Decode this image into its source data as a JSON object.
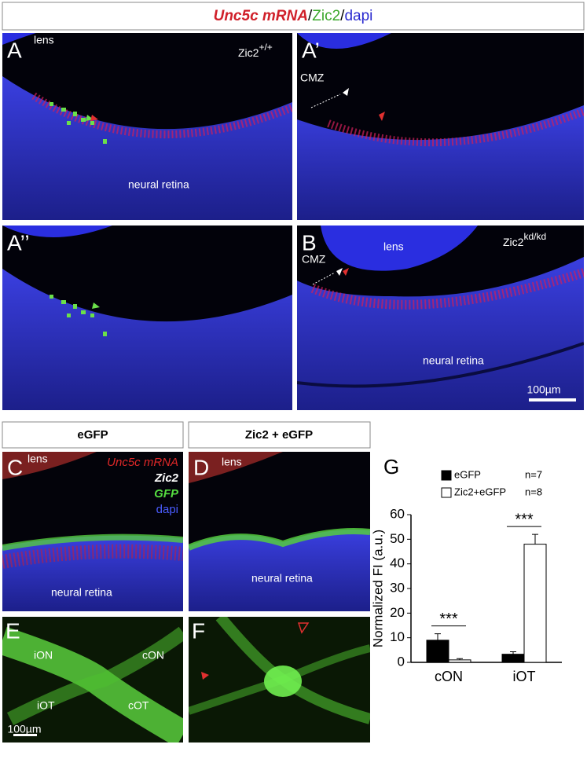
{
  "header": {
    "title_parts": [
      "Unc5c mRNA",
      "/",
      "Zic2",
      "/",
      "dapi"
    ]
  },
  "panel_A": {
    "letter": "A",
    "lens": "lens",
    "genotype": "Zic2",
    "superscript": "+/+",
    "region": "neural retina"
  },
  "panel_A1": {
    "letter": "A’",
    "cmz": "CMZ"
  },
  "panel_A2": {
    "letter": "A’’"
  },
  "panel_B": {
    "letter": "B",
    "lens": "lens",
    "genotype": "Zic2",
    "superscript": "kd/kd",
    "cmz": "CMZ",
    "region": "neural retina",
    "scale": "100µm"
  },
  "column_headers": [
    "eGFP",
    "Zic2 + eGFP"
  ],
  "panel_C": {
    "letter": "C",
    "lens": "lens",
    "legend": [
      "Unc5c mRNA",
      "Zic2",
      "GFP",
      "dapi"
    ],
    "region": "neural retina"
  },
  "panel_D": {
    "letter": "D",
    "lens": "lens",
    "region": "neural retina"
  },
  "panel_E": {
    "letter": "E",
    "labels": [
      "iON",
      "cON",
      "iOT",
      "cOT"
    ],
    "scale": "100µm"
  },
  "panel_F": {
    "letter": "F"
  },
  "chart_data": {
    "type": "bar",
    "panel_letter": "G",
    "y_label": "Normalized FI (a.u.)",
    "categories": [
      "cON",
      "iOT"
    ],
    "series": [
      {
        "name": "eGFP",
        "n": "n=7",
        "color": "#000000",
        "values": [
          9,
          3.3
        ],
        "errors": [
          2.6,
          1
        ]
      },
      {
        "name": "Zic2+eGFP",
        "n": "n=8",
        "color": "#ffffff",
        "values": [
          1,
          48
        ],
        "errors": [
          0.5,
          4
        ]
      }
    ],
    "significance": [
      "***",
      "***"
    ],
    "ylim": [
      0,
      60
    ],
    "yticks": [
      0,
      10,
      20,
      30,
      40,
      50,
      60
    ]
  }
}
